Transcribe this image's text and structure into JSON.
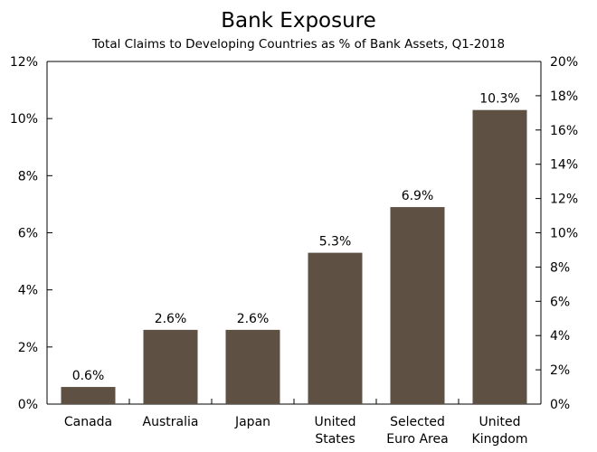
{
  "chart_data": {
    "type": "bar",
    "title": "Bank Exposure",
    "subtitle": "Total Claims to Developing Countries as % of Bank Assets, Q1-2018",
    "categories": [
      [
        "Canada"
      ],
      [
        "Australia"
      ],
      [
        "Japan"
      ],
      [
        "United",
        "States"
      ],
      [
        "Selected",
        "Euro Area"
      ],
      [
        "United",
        "Kingdom"
      ]
    ],
    "values": [
      0.6,
      2.6,
      2.6,
      5.3,
      6.9,
      10.3
    ],
    "data_labels": [
      "0.6%",
      "2.6%",
      "2.6%",
      "5.3%",
      "6.9%",
      "10.3%"
    ],
    "ylim": [
      0,
      12
    ],
    "yticks": [
      "0%",
      "2%",
      "4%",
      "6%",
      "8%",
      "10%",
      "12%"
    ],
    "y2lim": [
      0,
      20
    ],
    "y2ticks": [
      "0%",
      "2%",
      "4%",
      "6%",
      "8%",
      "10%",
      "12%",
      "14%",
      "16%",
      "18%",
      "20%"
    ],
    "bar_color": "#5e5144",
    "grid": false,
    "legend": "none"
  }
}
